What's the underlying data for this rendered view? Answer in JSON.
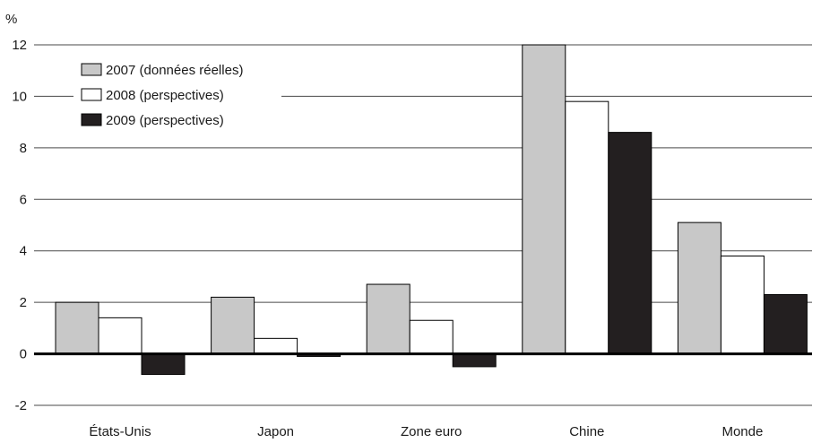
{
  "chart_data": {
    "type": "bar",
    "ylabel": "%",
    "ylim": [
      -2,
      12
    ],
    "yticks": [
      -2,
      0,
      2,
      4,
      6,
      8,
      10,
      12
    ],
    "grid": true,
    "legend_position": "top-left",
    "categories": [
      "États-Unis",
      "Japon",
      "Zone euro",
      "Chine",
      "Monde"
    ],
    "series": [
      {
        "name": "2007 (données réelles)",
        "values": [
          2.0,
          2.2,
          2.7,
          12.0,
          5.1
        ],
        "color": "#c8c8c8"
      },
      {
        "name": "2008 (perspectives)",
        "values": [
          1.4,
          0.6,
          1.3,
          9.8,
          3.8
        ],
        "color": "#ffffff"
      },
      {
        "name": "2009 (perspectives)",
        "values": [
          -0.8,
          -0.1,
          -0.5,
          8.6,
          2.3
        ],
        "color": "#231f20"
      }
    ]
  }
}
